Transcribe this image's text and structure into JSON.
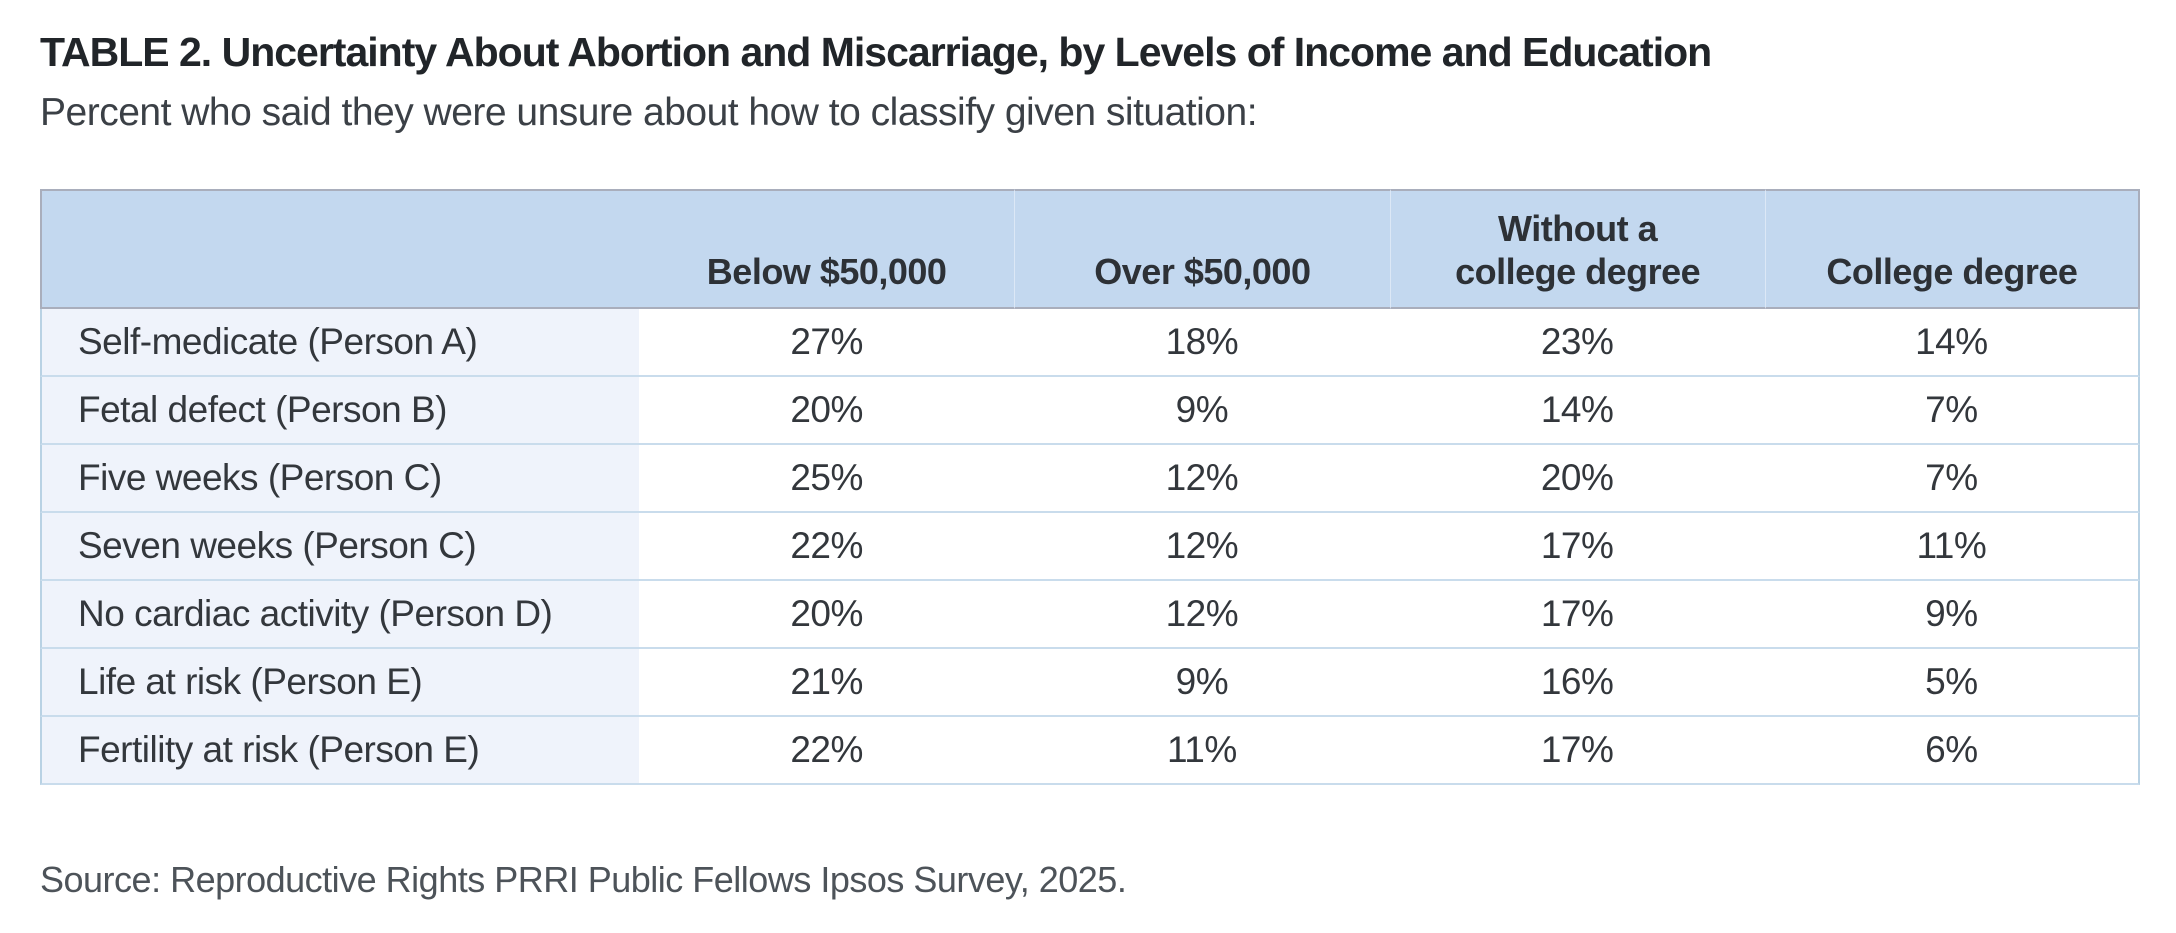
{
  "colors": {
    "page_bg": "#ffffff",
    "header_bg": "#c3d8ef",
    "label_col_bg": "#eff3fb",
    "row_border": "#c9dcec",
    "table_outer_border": "#b9d2e4",
    "header_border": "#a9aebc",
    "header_cell_divider": "#dce8f6",
    "title_text": "#212529",
    "subtitle_text": "#3b4046",
    "header_text": "#2d3136",
    "cell_text": "#33373c",
    "source_text": "#4d5359"
  },
  "chart_data": {
    "type": "table",
    "title": "TABLE 2. Uncertainty About Abortion and Miscarriage, by Levels of Income and Education",
    "subtitle": "Percent who said they were unsure about how to classify given situation:",
    "columns": [
      "",
      "Below $50,000",
      "Over $50,000",
      "Without a\ncollege degree",
      "College degree"
    ],
    "rows": [
      {
        "label": "Self-medicate (Person A)",
        "values": [
          "27%",
          "18%",
          "23%",
          "14%"
        ]
      },
      {
        "label": "Fetal defect (Person B)",
        "values": [
          "20%",
          "9%",
          "14%",
          "7%"
        ]
      },
      {
        "label": "Five weeks (Person C)",
        "values": [
          "25%",
          "12%",
          "20%",
          "7%"
        ]
      },
      {
        "label": "Seven weeks (Person C)",
        "values": [
          "22%",
          "12%",
          "17%",
          "11%"
        ]
      },
      {
        "label": "No cardiac activity (Person D)",
        "values": [
          "20%",
          "12%",
          "17%",
          "9%"
        ]
      },
      {
        "label": "Life at risk (Person E)",
        "values": [
          "21%",
          "9%",
          "16%",
          "5%"
        ]
      },
      {
        "label": "Fertility at risk (Person E)",
        "values": [
          "22%",
          "11%",
          "17%",
          "6%"
        ]
      }
    ],
    "source": "Source: Reproductive Rights PRRI Public Fellows Ipsos Survey, 2025."
  }
}
